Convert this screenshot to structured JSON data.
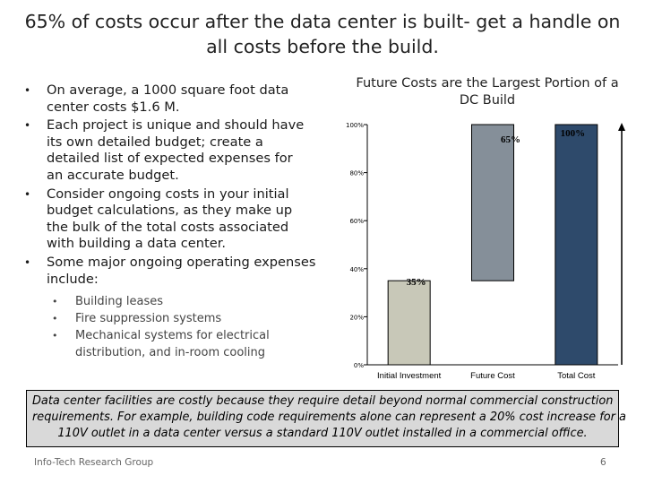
{
  "title": {
    "line1": "65% of costs occur after the data center is built- get a handle on",
    "line2": "all costs before the build."
  },
  "bullets": [
    {
      "lines": [
        "On average, a 1000 square foot data",
        "center costs $1.6 M."
      ]
    },
    {
      "lines": [
        "Each project is unique and should have",
        "its own detailed budget; create a",
        "detailed list of expected expenses for",
        "an accurate budget."
      ]
    },
    {
      "lines": [
        "Consider ongoing costs in your initial",
        "budget calculations, as they make up",
        "the bulk of the total costs associated",
        "with building a data center."
      ]
    },
    {
      "lines": [
        "Some major ongoing operating expenses",
        "include:"
      ]
    }
  ],
  "sub_bullets": [
    {
      "lines": [
        "Building leases"
      ]
    },
    {
      "lines": [
        "Fire suppression systems"
      ]
    },
    {
      "lines": [
        "Mechanical systems for electrical",
        "distribution, and in-room cooling"
      ]
    }
  ],
  "bullet_char": "•",
  "chart_data": {
    "type": "bar",
    "subtype": "waterfall",
    "title_line1": "Future Costs are the Largest Portion of a",
    "title_line2": "DC Build",
    "categories": [
      "Initial Investment",
      "Future Cost",
      "Total Cost"
    ],
    "values": [
      35,
      65,
      100
    ],
    "base": [
      0,
      35,
      0
    ],
    "data_labels": [
      "35%",
      "65%",
      "100%"
    ],
    "yticks": [
      "0%",
      "20%",
      "40%",
      "60%",
      "80%",
      "100%"
    ],
    "ylim": [
      0,
      100
    ],
    "colors": [
      "#c8c8b8",
      "#858f99",
      "#2e4a6b"
    ],
    "total_arrow": true
  },
  "callout": {
    "line1": "Data center facilities are costly because they require detail beyond normal commercial construction",
    "line2": "requirements. For example, building code requirements alone can represent a 20% cost increase for a",
    "line3": "110V outlet in a data center versus a standard 110V outlet installed in a commercial office."
  },
  "footer": {
    "company": "Info-Tech Research Group",
    "page_number": "6"
  }
}
